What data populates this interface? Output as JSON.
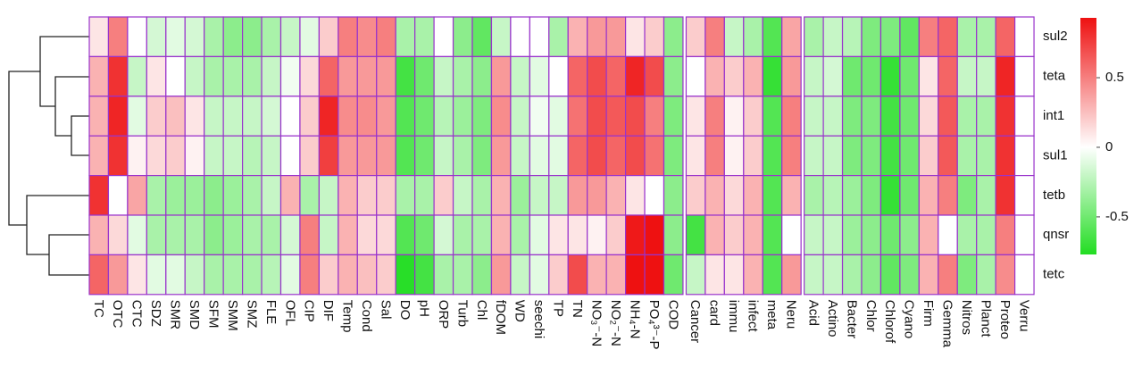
{
  "chart_data": {
    "type": "heatmap",
    "rows": [
      "sul2",
      "teta",
      "int1",
      "sul1",
      "tetb",
      "qnsr",
      "tetc"
    ],
    "column_groups": [
      {
        "categories": [
          "TC",
          "OTC",
          "CTC",
          "SDZ",
          "SMR",
          "SMD",
          "SFM",
          "SMM",
          "SMZ",
          "FLE",
          "OFL",
          "CIP",
          "DIF",
          "Temp",
          "Cond",
          "Sal",
          "DO",
          "pH",
          "ORP",
          "Turb",
          "Chl",
          "fDOM",
          "WD",
          "seechi",
          "TP",
          "TN",
          "NO₃⁻-N",
          "NO₂⁻-N",
          "NH₄-N",
          "PO₄³⁻-P",
          "COD"
        ],
        "values": [
          [
            0.1,
            0.5,
            0.0,
            -0.15,
            -0.1,
            -0.15,
            -0.3,
            -0.4,
            -0.4,
            -0.3,
            -0.2,
            -0.1,
            0.2,
            0.5,
            0.45,
            0.5,
            -0.3,
            -0.3,
            0.0,
            -0.4,
            -0.55,
            -0.2,
            0.0,
            0.0,
            -0.3,
            0.3,
            0.4,
            0.4,
            0.1,
            0.2,
            -0.4
          ],
          [
            0.3,
            0.8,
            -0.2,
            0.1,
            0.0,
            -0.2,
            -0.3,
            -0.3,
            -0.3,
            -0.2,
            -0.05,
            0.15,
            0.6,
            0.4,
            0.4,
            0.4,
            -0.65,
            -0.5,
            -0.2,
            -0.3,
            -0.4,
            0.4,
            -0.2,
            -0.1,
            0.0,
            0.6,
            0.7,
            0.6,
            0.85,
            0.7,
            -0.4
          ],
          [
            0.3,
            0.85,
            -0.1,
            0.2,
            0.25,
            0.1,
            -0.2,
            -0.2,
            -0.2,
            -0.15,
            0.0,
            0.2,
            0.85,
            0.45,
            0.45,
            0.4,
            -0.6,
            -0.5,
            -0.25,
            -0.35,
            -0.45,
            0.45,
            -0.2,
            -0.05,
            -0.1,
            0.55,
            0.7,
            0.65,
            0.7,
            0.5,
            -0.45
          ],
          [
            0.3,
            0.8,
            0.05,
            0.15,
            0.2,
            0.05,
            -0.2,
            -0.2,
            -0.25,
            -0.2,
            0.0,
            0.2,
            0.75,
            0.4,
            0.4,
            0.4,
            -0.6,
            -0.5,
            -0.2,
            -0.3,
            -0.45,
            0.4,
            -0.2,
            -0.1,
            -0.1,
            0.6,
            0.7,
            0.6,
            0.7,
            0.55,
            -0.45
          ],
          [
            0.8,
            0.0,
            0.35,
            -0.3,
            -0.35,
            -0.35,
            -0.4,
            -0.35,
            -0.3,
            -0.2,
            0.3,
            -0.3,
            -0.2,
            0.3,
            0.2,
            0.2,
            -0.3,
            -0.3,
            0.2,
            -0.2,
            -0.3,
            0.3,
            -0.35,
            -0.2,
            -0.2,
            0.4,
            0.4,
            0.3,
            0.1,
            0.0,
            -0.4
          ],
          [
            0.3,
            0.15,
            -0.1,
            -0.3,
            -0.3,
            -0.3,
            -0.4,
            -0.35,
            -0.3,
            -0.3,
            -0.15,
            0.5,
            -0.2,
            0.3,
            0.15,
            0.15,
            -0.6,
            -0.5,
            -0.15,
            -0.3,
            -0.3,
            0.3,
            -0.3,
            -0.1,
            0.1,
            0.1,
            0.05,
            0.2,
            0.9,
            0.93,
            -0.4
          ],
          [
            0.6,
            0.4,
            0.1,
            -0.1,
            -0.1,
            -0.2,
            -0.3,
            -0.3,
            -0.3,
            -0.25,
            -0.1,
            0.5,
            0.2,
            0.3,
            0.25,
            0.2,
            -0.75,
            -0.65,
            -0.3,
            -0.3,
            -0.4,
            0.4,
            -0.2,
            -0.1,
            0.2,
            0.7,
            0.3,
            0.3,
            0.93,
            0.93,
            -0.5
          ]
        ]
      },
      {
        "categories": [
          "Cancer",
          "card",
          "immu",
          "infect",
          "meta",
          "Neru"
        ],
        "values": [
          [
            0.2,
            0.5,
            -0.2,
            -0.3,
            -0.6,
            0.35
          ],
          [
            0.0,
            0.3,
            0.2,
            0.3,
            -0.7,
            0.4
          ],
          [
            0.1,
            0.5,
            0.05,
            0.2,
            -0.6,
            0.5
          ],
          [
            0.1,
            0.5,
            0.05,
            0.2,
            -0.6,
            0.5
          ],
          [
            0.2,
            0.3,
            0.15,
            0.3,
            -0.6,
            0.3
          ],
          [
            -0.65,
            0.3,
            0.2,
            0.3,
            -0.6,
            0.0
          ],
          [
            -0.2,
            0.1,
            0.1,
            0.3,
            -0.6,
            0.4
          ]
        ]
      },
      {
        "categories": [
          "Acid",
          "Actino",
          "Bacter",
          "Chlor",
          "Chlorof",
          "Cyano",
          "Firm",
          "Gemma",
          "Nitros",
          "Planct",
          "Proteo",
          "Verru"
        ],
        "values": [
          [
            -0.3,
            -0.2,
            -0.25,
            -0.45,
            -0.45,
            -0.55,
            0.5,
            0.6,
            -0.3,
            -0.3,
            0.6,
            0.0
          ],
          [
            -0.2,
            -0.15,
            -0.5,
            -0.5,
            -0.7,
            -0.5,
            0.1,
            0.6,
            -0.2,
            -0.2,
            0.85,
            0.0
          ],
          [
            -0.2,
            -0.2,
            -0.45,
            -0.45,
            -0.65,
            -0.5,
            0.15,
            0.65,
            -0.3,
            -0.3,
            0.8,
            0.0
          ],
          [
            -0.2,
            -0.2,
            -0.45,
            -0.45,
            -0.65,
            -0.5,
            0.2,
            0.65,
            -0.3,
            -0.3,
            0.8,
            0.0
          ],
          [
            -0.3,
            -0.25,
            -0.35,
            -0.45,
            -0.7,
            -0.5,
            0.3,
            0.5,
            -0.45,
            -0.3,
            0.8,
            0.0
          ],
          [
            -0.2,
            -0.2,
            -0.35,
            -0.4,
            -0.5,
            -0.4,
            0.3,
            0.0,
            -0.3,
            -0.3,
            0.5,
            0.0
          ],
          [
            -0.2,
            -0.2,
            -0.3,
            -0.4,
            -0.55,
            -0.45,
            0.3,
            0.5,
            -0.45,
            -0.3,
            0.45,
            0.0
          ]
        ]
      }
    ],
    "clim": [
      -0.77,
      0.93
    ],
    "cticks": [
      -0.5,
      0,
      0.5
    ],
    "colors": [
      "#22dd22",
      "#ffffff",
      "#ee1111"
    ],
    "border_color": "#9933cc"
  }
}
